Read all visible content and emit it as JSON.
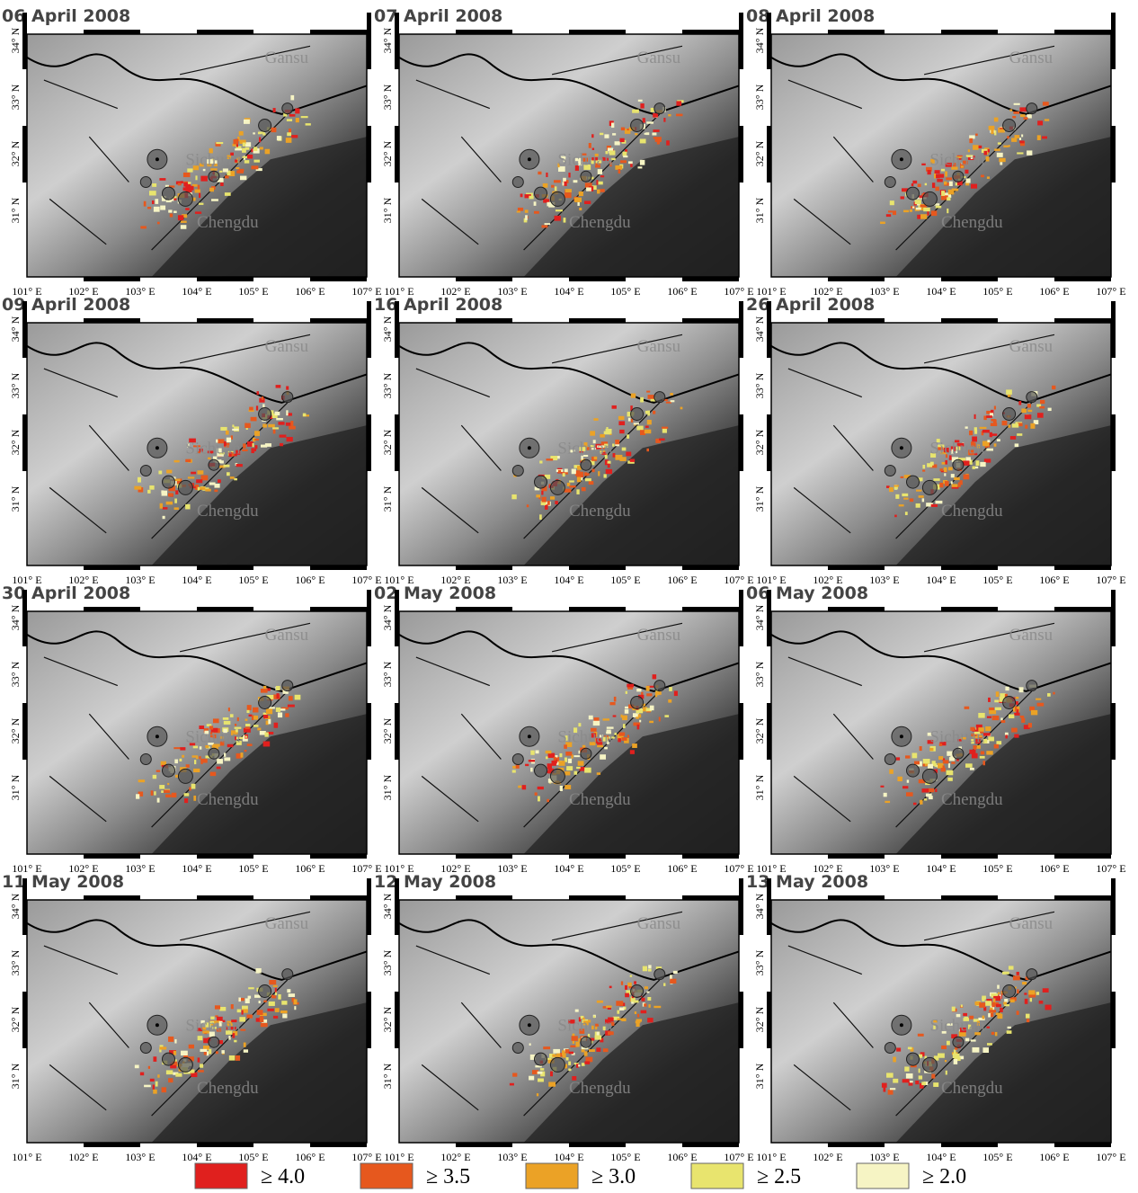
{
  "panels": [
    {
      "title": "06 April 2008"
    },
    {
      "title": "07 April 2008"
    },
    {
      "title": "08 April 2008"
    },
    {
      "title": "09 April 2008"
    },
    {
      "title": "16 April 2008"
    },
    {
      "title": "26 April 2008"
    },
    {
      "title": "30 April 2008"
    },
    {
      "title": "02 May 2008"
    },
    {
      "title": "06 May 2008"
    },
    {
      "title": "11 May 2008"
    },
    {
      "title": "12 May 2008"
    },
    {
      "title": "13 May 2008"
    }
  ],
  "x_axis_labels": [
    "101° E",
    "102° E",
    "103° E",
    "104° E",
    "105° E",
    "106° E",
    "107° E"
  ],
  "y_axis_labels": [
    "34° N",
    "33° N",
    "32° N",
    "31° N"
  ],
  "places": [
    "Gansu",
    "Sichuan",
    "Chengdu"
  ],
  "legend": [
    {
      "label": "≥ 4.0",
      "color": "#e0201e"
    },
    {
      "label": "≥ 3.5",
      "color": "#e6581e"
    },
    {
      "label": "≥ 3.0",
      "color": "#eba226"
    },
    {
      "label": "≥ 2.5",
      "color": "#e8e46e"
    },
    {
      "label": "≥ 2.0",
      "color": "#f6f4c4"
    }
  ]
}
